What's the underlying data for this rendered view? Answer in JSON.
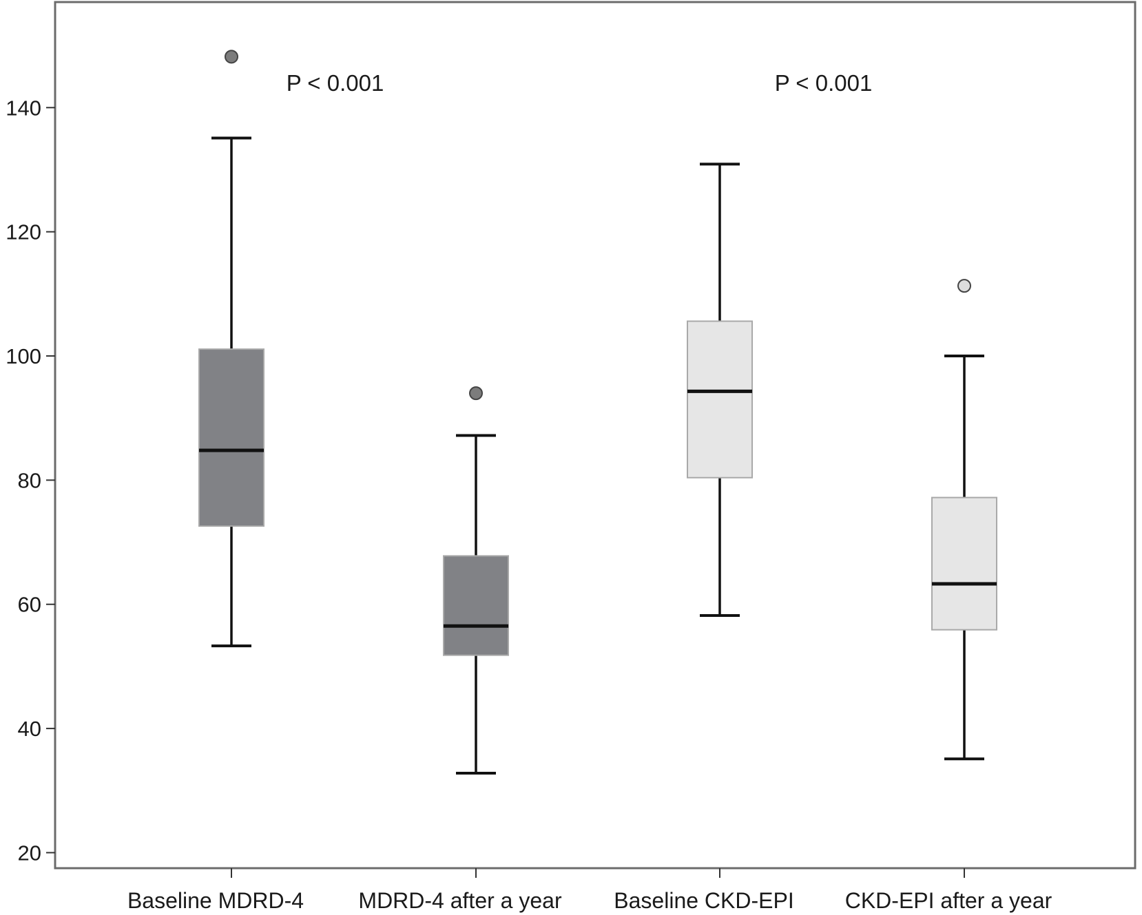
{
  "chart_data": {
    "type": "boxplot",
    "title": "",
    "xlabel": "",
    "ylabel": "",
    "ylim": [
      17.5,
      157
    ],
    "yticks": [
      20,
      40,
      60,
      80,
      100,
      120,
      140
    ],
    "grid": false,
    "legend": "none",
    "categories": [
      "Baseline MDRD-4",
      "MDRD-4 after a year",
      "Baseline CKD-EPI",
      "CKD-EPI after a year"
    ],
    "boxes": [
      {
        "category": "Baseline MDRD-4",
        "whisker_low": 53.3,
        "q1": 72.6,
        "median": 84.8,
        "q3": 101.1,
        "whisker_high": 135.1,
        "outliers": [
          148.2
        ],
        "fill": "#818286",
        "outlier_fill": "#7c7c7c"
      },
      {
        "category": "MDRD-4 after a year",
        "whisker_low": 32.8,
        "q1": 51.8,
        "median": 56.5,
        "q3": 67.8,
        "whisker_high": 87.2,
        "outliers": [
          94
        ],
        "fill": "#818286",
        "outlier_fill": "#7c7c7c"
      },
      {
        "category": "Baseline CKD-EPI",
        "whisker_low": 58.2,
        "q1": 80.4,
        "median": 94.3,
        "q3": 105.6,
        "whisker_high": 130.9,
        "outliers": [],
        "fill": "#e6e6e6",
        "outlier_fill": "#dddddd"
      },
      {
        "category": "CKD-EPI after a year",
        "whisker_low": 35.1,
        "q1": 55.9,
        "median": 63.3,
        "q3": 77.2,
        "whisker_high": 100,
        "outliers": [
          111.3
        ],
        "fill": "#e6e6e6",
        "outlier_fill": "#dddddd"
      }
    ],
    "annotations": [
      {
        "text": "P < 0.001",
        "between": [
          0,
          1
        ],
        "y": 144
      },
      {
        "text": "P < 0.001",
        "between": [
          2,
          3
        ],
        "y": 144
      }
    ]
  }
}
